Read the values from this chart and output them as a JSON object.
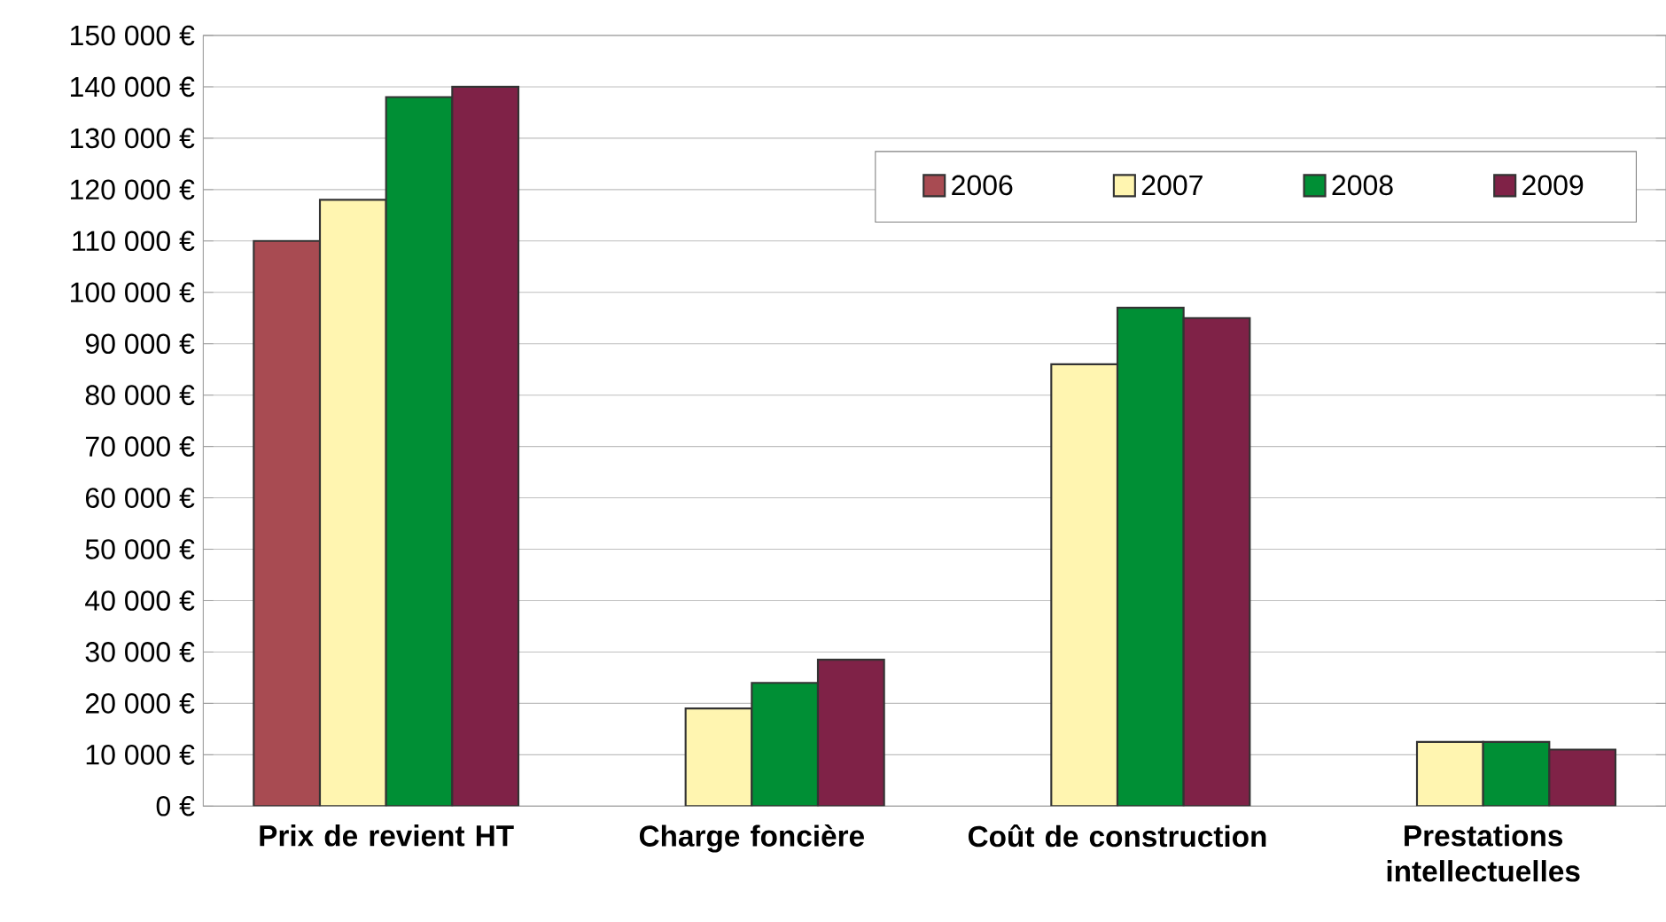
{
  "chart_data": {
    "type": "bar",
    "categories": [
      "Prix de revient HT",
      "Charge foncière",
      "Coût de construction",
      "Prestations intellectuelles"
    ],
    "series": [
      {
        "name": "2006",
        "color": "#a84b52",
        "values": [
          110000,
          null,
          null,
          null
        ]
      },
      {
        "name": "2007",
        "color": "#fff5b0",
        "values": [
          118000,
          19000,
          86000,
          12500
        ]
      },
      {
        "name": "2008",
        "color": "#008f35",
        "values": [
          138000,
          24000,
          97000,
          12500
        ]
      },
      {
        "name": "2009",
        "color": "#7f2247",
        "values": [
          140000,
          28500,
          95000,
          11000
        ]
      }
    ],
    "ylim": [
      0,
      150000
    ],
    "yticks": [
      {
        "value": 0,
        "label": "0 €"
      },
      {
        "value": 10000,
        "label": "10 000 €"
      },
      {
        "value": 20000,
        "label": "20 000 €"
      },
      {
        "value": 30000,
        "label": "30 000 €"
      },
      {
        "value": 40000,
        "label": "40 000 €"
      },
      {
        "value": 50000,
        "label": "50 000 €"
      },
      {
        "value": 60000,
        "label": "60 000 €"
      },
      {
        "value": 70000,
        "label": "70 000 €"
      },
      {
        "value": 80000,
        "label": "80 000 €"
      },
      {
        "value": 90000,
        "label": "90 000 €"
      },
      {
        "value": 100000,
        "label": "100 000 €"
      },
      {
        "value": 110000,
        "label": "110 000 €"
      },
      {
        "value": 120000,
        "label": "120 000 €"
      },
      {
        "value": 130000,
        "label": "130 000 €"
      },
      {
        "value": 140000,
        "label": "140 000 €"
      },
      {
        "value": 150000,
        "label": "150 000 €"
      }
    ],
    "grid": "y",
    "legend": "top right"
  }
}
